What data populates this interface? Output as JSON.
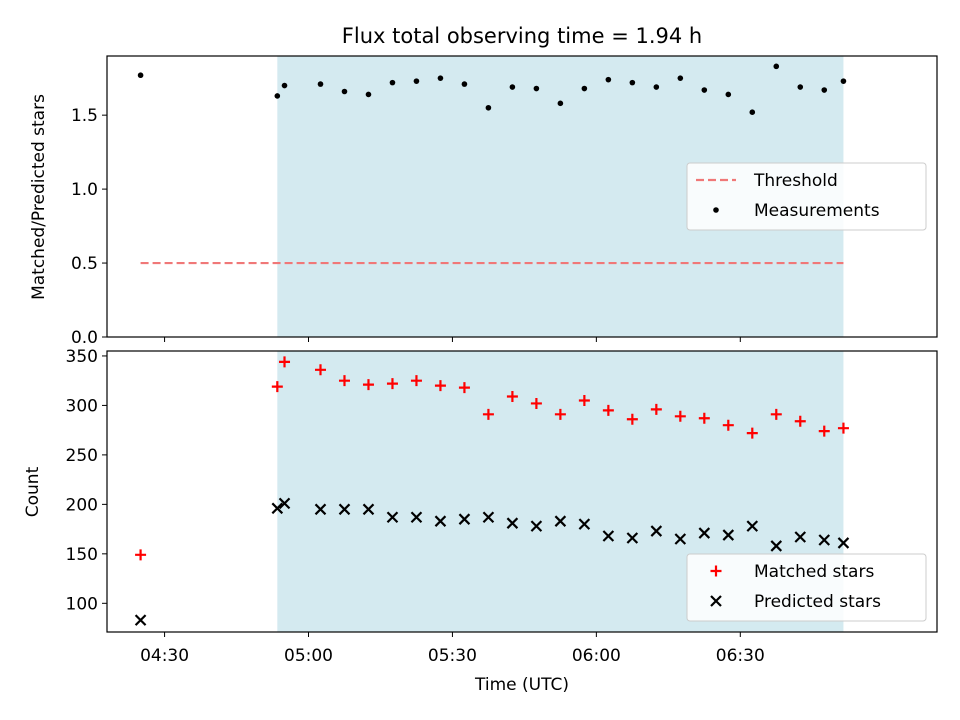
{
  "chart_data": [
    {
      "type": "scatter",
      "title": "Flux total observing time = 1.94 h",
      "ylabel": "Matched/Predicted stars",
      "ylim": [
        0,
        1.9
      ],
      "yticks": [
        0.0,
        0.5,
        1.0,
        1.5
      ],
      "ytick_labels": [
        "0.0",
        "0.5",
        "1.0",
        "1.5"
      ],
      "xlim_minutes": [
        258,
        431
      ],
      "shaded_span_minutes": [
        293.5,
        411.5
      ],
      "shade_color": "#d4eaf0",
      "legend_position": "center-right",
      "series": [
        {
          "name": "Threshold",
          "kind": "dashed-line",
          "color": "#f07878",
          "x": [
            265,
            411.5
          ],
          "y": [
            0.5,
            0.5
          ]
        },
        {
          "name": "Measurements",
          "kind": "dots",
          "color": "#000000",
          "x": [
            265,
            293.5,
            295,
            302.5,
            307.5,
            312.5,
            317.5,
            322.5,
            327.5,
            332.5,
            337.5,
            342.5,
            347.5,
            352.5,
            357.5,
            362.5,
            367.5,
            372.5,
            377.5,
            382.5,
            387.5,
            392.5,
            397.5,
            402.5,
            407.5,
            411.5
          ],
          "y": [
            1.77,
            1.63,
            1.7,
            1.71,
            1.66,
            1.64,
            1.72,
            1.73,
            1.75,
            1.71,
            1.55,
            1.69,
            1.68,
            1.58,
            1.68,
            1.74,
            1.72,
            1.69,
            1.75,
            1.67,
            1.64,
            1.52,
            1.83,
            1.69,
            1.67,
            1.73
          ]
        }
      ]
    },
    {
      "type": "scatter",
      "xlabel": "Time (UTC)",
      "ylabel": "Count",
      "ylim": [
        71,
        355
      ],
      "yticks": [
        100,
        150,
        200,
        250,
        300,
        350
      ],
      "ytick_labels": [
        "100",
        "150",
        "200",
        "250",
        "300",
        "350"
      ],
      "xlim_minutes": [
        258,
        431
      ],
      "xticks_minutes": [
        270,
        300,
        330,
        360,
        390
      ],
      "xtick_labels": [
        "04:30",
        "05:00",
        "05:30",
        "06:00",
        "06:30"
      ],
      "shaded_span_minutes": [
        293.5,
        411.5
      ],
      "shade_color": "#d4eaf0",
      "legend_position": "bottom-right",
      "series": [
        {
          "name": "Matched stars",
          "kind": "plus",
          "color": "#ff0000",
          "x": [
            265,
            293.5,
            295,
            302.5,
            307.5,
            312.5,
            317.5,
            322.5,
            327.5,
            332.5,
            337.5,
            342.5,
            347.5,
            352.5,
            357.5,
            362.5,
            367.5,
            372.5,
            377.5,
            382.5,
            387.5,
            392.5,
            397.5,
            402.5,
            407.5,
            411.5
          ],
          "y": [
            149,
            319,
            344,
            336,
            325,
            321,
            322,
            325,
            320,
            318,
            291,
            309,
            302,
            291,
            305,
            295,
            286,
            296,
            289,
            287,
            280,
            272,
            291,
            284,
            274,
            277
          ]
        },
        {
          "name": "Predicted stars",
          "kind": "cross",
          "color": "#000000",
          "x": [
            265,
            293.5,
            295,
            302.5,
            307.5,
            312.5,
            317.5,
            322.5,
            327.5,
            332.5,
            337.5,
            342.5,
            347.5,
            352.5,
            357.5,
            362.5,
            367.5,
            372.5,
            377.5,
            382.5,
            387.5,
            392.5,
            397.5,
            402.5,
            407.5,
            411.5
          ],
          "y": [
            83,
            196,
            201,
            195,
            195,
            195,
            187,
            187,
            183,
            185,
            187,
            181,
            178,
            183,
            180,
            168,
            166,
            173,
            165,
            171,
            169,
            178,
            158,
            167,
            164,
            161
          ]
        }
      ]
    }
  ]
}
